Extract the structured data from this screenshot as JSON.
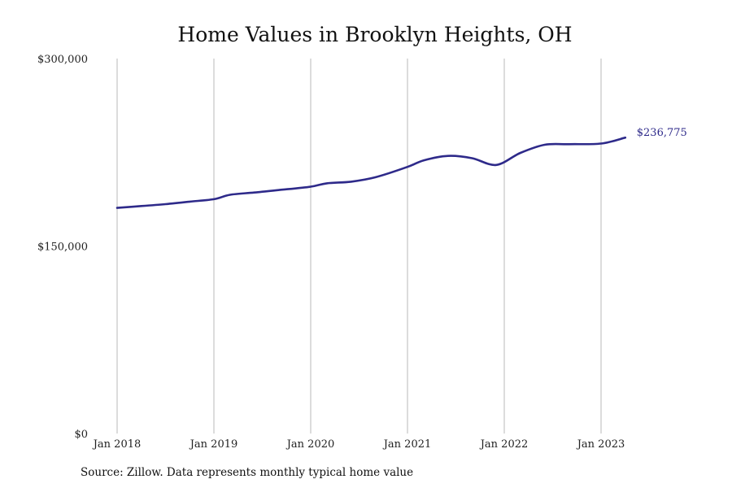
{
  "colors": {
    "line": "#2e2a8a",
    "grid": "#b8b8b8",
    "text": "#111111"
  },
  "source_note": "Source: Zillow. Data represents monthly typical home value",
  "chart_data": {
    "type": "line",
    "title": "Home Values in Brooklyn Heights, OH",
    "xlabel": "",
    "ylabel": "",
    "ylim": [
      0,
      300000
    ],
    "y_ticks": [
      {
        "value": 0,
        "label": "$0"
      },
      {
        "value": 150000,
        "label": "$150,000"
      },
      {
        "value": 300000,
        "label": "$300,000"
      }
    ],
    "x_ticks": [
      {
        "value": "2018-01",
        "label": "Jan 2018"
      },
      {
        "value": "2019-01",
        "label": "Jan 2019"
      },
      {
        "value": "2020-01",
        "label": "Jan 2020"
      },
      {
        "value": "2021-01",
        "label": "Jan 2021"
      },
      {
        "value": "2022-01",
        "label": "Jan 2022"
      },
      {
        "value": "2023-01",
        "label": "Jan 2023"
      }
    ],
    "grid": "vertical",
    "end_label": "$236,775",
    "x": [
      "2018-01",
      "2018-04",
      "2018-07",
      "2018-10",
      "2019-01",
      "2019-03",
      "2019-06",
      "2019-09",
      "2020-01",
      "2020-03",
      "2020-06",
      "2020-09",
      "2021-01",
      "2021-03",
      "2021-06",
      "2021-09",
      "2021-12",
      "2022-03",
      "2022-06",
      "2022-09",
      "2023-01",
      "2023-04"
    ],
    "values": [
      180500,
      182000,
      183500,
      185500,
      187500,
      191000,
      192800,
      194800,
      197500,
      200200,
      201500,
      205000,
      213300,
      218500,
      222100,
      220300,
      214900,
      224500,
      231000,
      231500,
      232000,
      236775
    ]
  }
}
